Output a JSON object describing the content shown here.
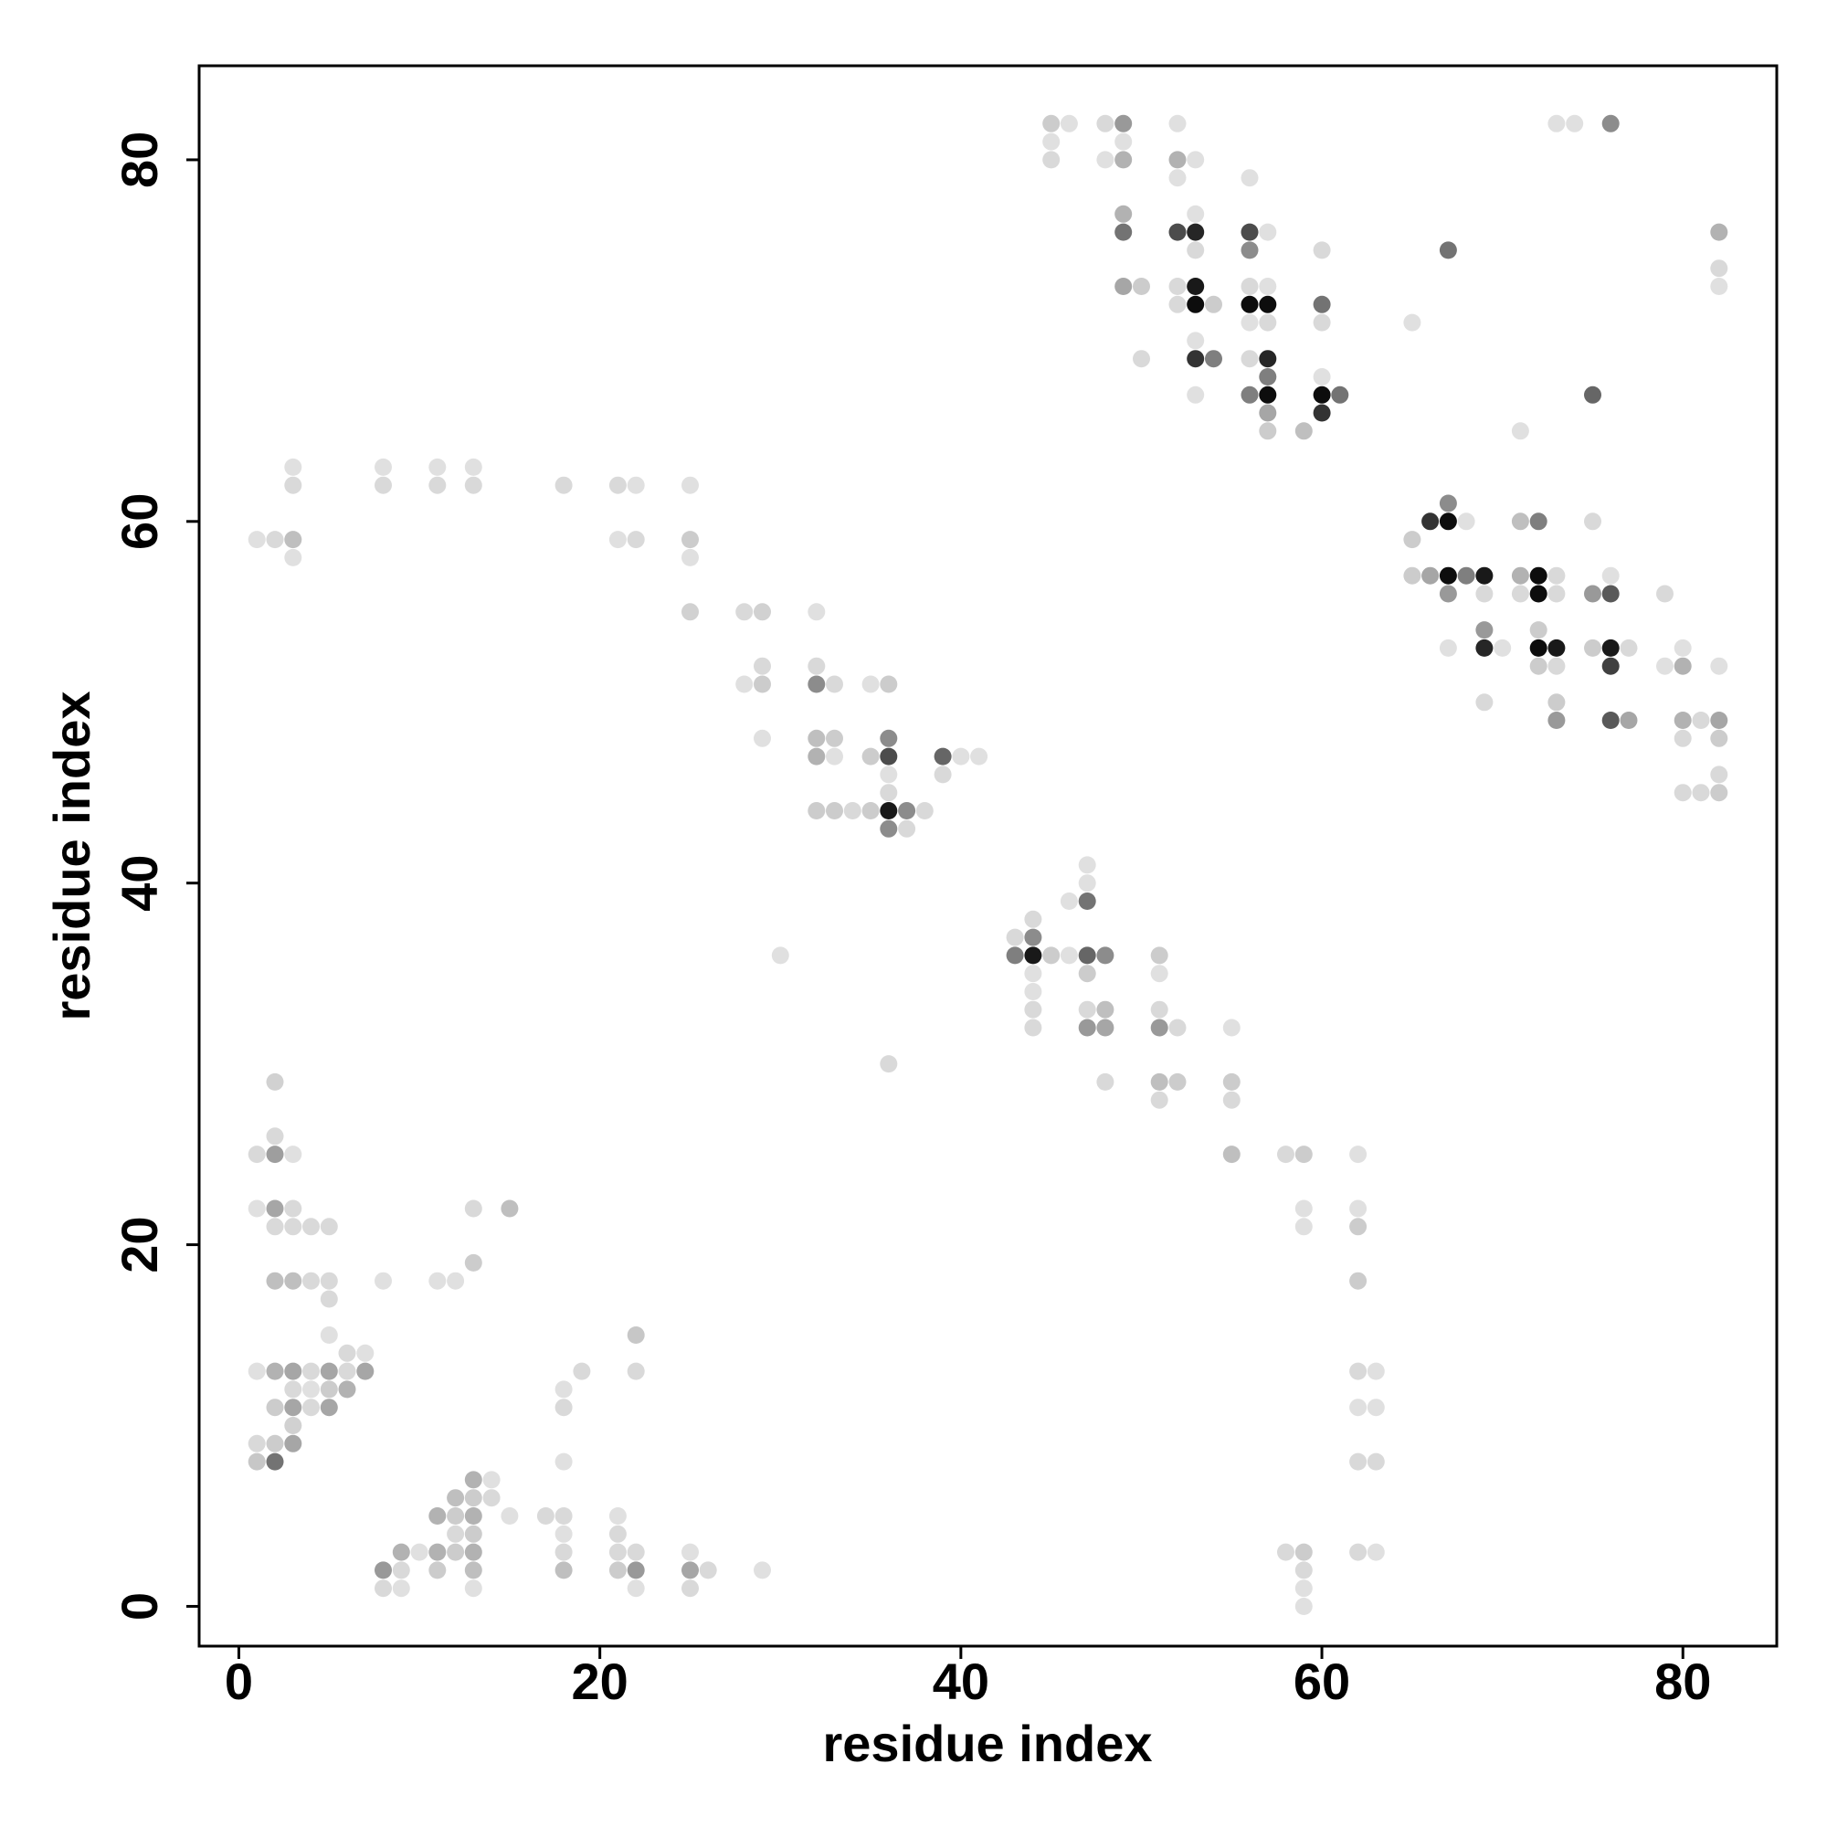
{
  "chart_data": {
    "type": "scatter",
    "title": "",
    "xlabel": "residue index",
    "ylabel": "residue index",
    "xlim": [
      -2.2,
      85.2
    ],
    "ylim": [
      -2.2,
      85.2
    ],
    "xticks": [
      0,
      20,
      40,
      60,
      80
    ],
    "yticks": [
      0,
      20,
      40,
      60,
      80
    ],
    "grid": false,
    "legend": "none",
    "marker_color": "#000000",
    "note_value": "point darkness (opacity 0-1) encodes contact strength",
    "points": [
      [
        1,
        13,
        0.12
      ],
      [
        1,
        22,
        0.12
      ],
      [
        1,
        25,
        0.15
      ],
      [
        1,
        59,
        0.12
      ],
      [
        1,
        9,
        0.15
      ],
      [
        1,
        8,
        0.22
      ],
      [
        2,
        8,
        0.55
      ],
      [
        2,
        9,
        0.2
      ],
      [
        2,
        11,
        0.2
      ],
      [
        2,
        13,
        0.3
      ],
      [
        2,
        18,
        0.25
      ],
      [
        2,
        21,
        0.15
      ],
      [
        2,
        22,
        0.35
      ],
      [
        2,
        25,
        0.38
      ],
      [
        2,
        26,
        0.15
      ],
      [
        2,
        29,
        0.18
      ],
      [
        2,
        59,
        0.15
      ],
      [
        3,
        9,
        0.35
      ],
      [
        3,
        10,
        0.18
      ],
      [
        3,
        11,
        0.35
      ],
      [
        3,
        12,
        0.15
      ],
      [
        3,
        13,
        0.35
      ],
      [
        3,
        18,
        0.25
      ],
      [
        3,
        21,
        0.15
      ],
      [
        3,
        22,
        0.15
      ],
      [
        3,
        25,
        0.12
      ],
      [
        3,
        58,
        0.12
      ],
      [
        3,
        59,
        0.25
      ],
      [
        3,
        62,
        0.15
      ],
      [
        3,
        63,
        0.12
      ],
      [
        4,
        11,
        0.15
      ],
      [
        4,
        12,
        0.12
      ],
      [
        4,
        13,
        0.15
      ],
      [
        4,
        18,
        0.15
      ],
      [
        4,
        21,
        0.15
      ],
      [
        5,
        11,
        0.35
      ],
      [
        5,
        12,
        0.2
      ],
      [
        5,
        13,
        0.35
      ],
      [
        5,
        15,
        0.12
      ],
      [
        5,
        17,
        0.15
      ],
      [
        5,
        18,
        0.15
      ],
      [
        5,
        21,
        0.15
      ],
      [
        6,
        12,
        0.3
      ],
      [
        6,
        13,
        0.15
      ],
      [
        6,
        14,
        0.15
      ],
      [
        7,
        13,
        0.35
      ],
      [
        7,
        14,
        0.12
      ],
      [
        8,
        1,
        0.15
      ],
      [
        8,
        2,
        0.4
      ],
      [
        8,
        18,
        0.12
      ],
      [
        8,
        62,
        0.15
      ],
      [
        8,
        63,
        0.12
      ],
      [
        9,
        1,
        0.12
      ],
      [
        9,
        2,
        0.15
      ],
      [
        9,
        3,
        0.3
      ],
      [
        10,
        3,
        0.12
      ],
      [
        11,
        2,
        0.2
      ],
      [
        11,
        3,
        0.3
      ],
      [
        11,
        5,
        0.3
      ],
      [
        11,
        18,
        0.12
      ],
      [
        11,
        62,
        0.15
      ],
      [
        11,
        63,
        0.12
      ],
      [
        12,
        3,
        0.2
      ],
      [
        12,
        4,
        0.15
      ],
      [
        12,
        5,
        0.2
      ],
      [
        12,
        6,
        0.25
      ],
      [
        12,
        18,
        0.12
      ],
      [
        13,
        1,
        0.12
      ],
      [
        13,
        2,
        0.25
      ],
      [
        13,
        3,
        0.3
      ],
      [
        13,
        4,
        0.2
      ],
      [
        13,
        5,
        0.3
      ],
      [
        13,
        6,
        0.2
      ],
      [
        13,
        7,
        0.3
      ],
      [
        13,
        19,
        0.2
      ],
      [
        13,
        22,
        0.15
      ],
      [
        13,
        62,
        0.15
      ],
      [
        13,
        63,
        0.12
      ],
      [
        14,
        6,
        0.15
      ],
      [
        14,
        7,
        0.12
      ],
      [
        15,
        5,
        0.12
      ],
      [
        15,
        22,
        0.25
      ],
      [
        17,
        5,
        0.15
      ],
      [
        18,
        2,
        0.25
      ],
      [
        18,
        3,
        0.15
      ],
      [
        18,
        4,
        0.12
      ],
      [
        18,
        5,
        0.15
      ],
      [
        18,
        8,
        0.12
      ],
      [
        18,
        11,
        0.15
      ],
      [
        18,
        12,
        0.12
      ],
      [
        18,
        62,
        0.15
      ],
      [
        19,
        13,
        0.15
      ],
      [
        21,
        2,
        0.2
      ],
      [
        21,
        3,
        0.15
      ],
      [
        21,
        4,
        0.15
      ],
      [
        21,
        5,
        0.12
      ],
      [
        21,
        59,
        0.12
      ],
      [
        21,
        62,
        0.15
      ],
      [
        22,
        1,
        0.12
      ],
      [
        22,
        2,
        0.4
      ],
      [
        22,
        3,
        0.15
      ],
      [
        22,
        13,
        0.15
      ],
      [
        22,
        15,
        0.22
      ],
      [
        22,
        59,
        0.15
      ],
      [
        22,
        62,
        0.12
      ],
      [
        25,
        1,
        0.15
      ],
      [
        25,
        2,
        0.35
      ],
      [
        25,
        3,
        0.12
      ],
      [
        25,
        55,
        0.18
      ],
      [
        25,
        58,
        0.12
      ],
      [
        25,
        59,
        0.2
      ],
      [
        25,
        62,
        0.12
      ],
      [
        26,
        2,
        0.15
      ],
      [
        28,
        51,
        0.12
      ],
      [
        28,
        55,
        0.15
      ],
      [
        29,
        2,
        0.12
      ],
      [
        29,
        48,
        0.12
      ],
      [
        29,
        51,
        0.2
      ],
      [
        29,
        52,
        0.15
      ],
      [
        29,
        55,
        0.18
      ],
      [
        30,
        36,
        0.12
      ],
      [
        32,
        44,
        0.2
      ],
      [
        32,
        47,
        0.3
      ],
      [
        32,
        48,
        0.25
      ],
      [
        32,
        51,
        0.45
      ],
      [
        32,
        52,
        0.15
      ],
      [
        32,
        55,
        0.12
      ],
      [
        33,
        44,
        0.2
      ],
      [
        33,
        47,
        0.12
      ],
      [
        33,
        48,
        0.2
      ],
      [
        33,
        51,
        0.15
      ],
      [
        34,
        44,
        0.15
      ],
      [
        35,
        44,
        0.2
      ],
      [
        35,
        47,
        0.2
      ],
      [
        35,
        51,
        0.12
      ],
      [
        36,
        30,
        0.15
      ],
      [
        36,
        43,
        0.45
      ],
      [
        36,
        44,
        0.9
      ],
      [
        36,
        45,
        0.15
      ],
      [
        36,
        46,
        0.12
      ],
      [
        36,
        47,
        0.7
      ],
      [
        36,
        48,
        0.45
      ],
      [
        36,
        51,
        0.2
      ],
      [
        37,
        43,
        0.15
      ],
      [
        37,
        44,
        0.45
      ],
      [
        38,
        44,
        0.15
      ],
      [
        39,
        46,
        0.15
      ],
      [
        39,
        47,
        0.6
      ],
      [
        40,
        47,
        0.12
      ],
      [
        41,
        47,
        0.12
      ],
      [
        43,
        36,
        0.5
      ],
      [
        43,
        37,
        0.15
      ],
      [
        44,
        32,
        0.15
      ],
      [
        44,
        33,
        0.15
      ],
      [
        44,
        34,
        0.12
      ],
      [
        44,
        35,
        0.12
      ],
      [
        44,
        36,
        0.9
      ],
      [
        44,
        37,
        0.45
      ],
      [
        44,
        38,
        0.15
      ],
      [
        45,
        36,
        0.2
      ],
      [
        45,
        81,
        0.12
      ],
      [
        45,
        82,
        0.2
      ],
      [
        45,
        80,
        0.15
      ],
      [
        46,
        36,
        0.12
      ],
      [
        46,
        39,
        0.12
      ],
      [
        46,
        82,
        0.12
      ],
      [
        47,
        32,
        0.4
      ],
      [
        47,
        33,
        0.15
      ],
      [
        47,
        35,
        0.2
      ],
      [
        47,
        36,
        0.6
      ],
      [
        47,
        39,
        0.55
      ],
      [
        47,
        40,
        0.12
      ],
      [
        47,
        41,
        0.12
      ],
      [
        48,
        29,
        0.15
      ],
      [
        48,
        32,
        0.35
      ],
      [
        48,
        33,
        0.25
      ],
      [
        48,
        36,
        0.45
      ],
      [
        48,
        80,
        0.12
      ],
      [
        48,
        82,
        0.15
      ],
      [
        49,
        73,
        0.35
      ],
      [
        49,
        76,
        0.55
      ],
      [
        49,
        77,
        0.3
      ],
      [
        49,
        80,
        0.3
      ],
      [
        49,
        81,
        0.12
      ],
      [
        49,
        82,
        0.4
      ],
      [
        50,
        69,
        0.15
      ],
      [
        50,
        73,
        0.2
      ],
      [
        51,
        28,
        0.15
      ],
      [
        51,
        29,
        0.25
      ],
      [
        51,
        32,
        0.4
      ],
      [
        51,
        33,
        0.15
      ],
      [
        51,
        35,
        0.12
      ],
      [
        51,
        36,
        0.2
      ],
      [
        52,
        29,
        0.2
      ],
      [
        52,
        32,
        0.15
      ],
      [
        52,
        72,
        0.15
      ],
      [
        52,
        73,
        0.15
      ],
      [
        52,
        76,
        0.7
      ],
      [
        52,
        79,
        0.12
      ],
      [
        52,
        80,
        0.3
      ],
      [
        52,
        82,
        0.12
      ],
      [
        53,
        67,
        0.12
      ],
      [
        53,
        69,
        0.8
      ],
      [
        53,
        70,
        0.12
      ],
      [
        53,
        72,
        0.95
      ],
      [
        53,
        73,
        0.9
      ],
      [
        53,
        75,
        0.15
      ],
      [
        53,
        76,
        0.85
      ],
      [
        53,
        77,
        0.12
      ],
      [
        53,
        80,
        0.12
      ],
      [
        54,
        69,
        0.5
      ],
      [
        54,
        72,
        0.2
      ],
      [
        55,
        25,
        0.25
      ],
      [
        55,
        28,
        0.15
      ],
      [
        55,
        29,
        0.2
      ],
      [
        55,
        32,
        0.12
      ],
      [
        56,
        67,
        0.5
      ],
      [
        56,
        69,
        0.15
      ],
      [
        56,
        71,
        0.12
      ],
      [
        56,
        72,
        0.95
      ],
      [
        56,
        73,
        0.15
      ],
      [
        56,
        75,
        0.45
      ],
      [
        56,
        76,
        0.7
      ],
      [
        56,
        79,
        0.12
      ],
      [
        57,
        65,
        0.2
      ],
      [
        57,
        66,
        0.35
      ],
      [
        57,
        67,
        0.95
      ],
      [
        57,
        68,
        0.5
      ],
      [
        57,
        69,
        0.85
      ],
      [
        57,
        71,
        0.15
      ],
      [
        57,
        72,
        0.95
      ],
      [
        57,
        73,
        0.12
      ],
      [
        57,
        76,
        0.12
      ],
      [
        58,
        3,
        0.15
      ],
      [
        58,
        25,
        0.15
      ],
      [
        59,
        0,
        0.12
      ],
      [
        59,
        1,
        0.12
      ],
      [
        59,
        2,
        0.15
      ],
      [
        59,
        3,
        0.2
      ],
      [
        59,
        21,
        0.12
      ],
      [
        59,
        22,
        0.12
      ],
      [
        59,
        25,
        0.2
      ],
      [
        59,
        65,
        0.25
      ],
      [
        60,
        66,
        0.8
      ],
      [
        60,
        67,
        0.95
      ],
      [
        60,
        68,
        0.12
      ],
      [
        60,
        71,
        0.15
      ],
      [
        60,
        72,
        0.55
      ],
      [
        60,
        75,
        0.15
      ],
      [
        61,
        67,
        0.55
      ],
      [
        62,
        3,
        0.15
      ],
      [
        62,
        8,
        0.15
      ],
      [
        62,
        11,
        0.12
      ],
      [
        62,
        13,
        0.15
      ],
      [
        62,
        18,
        0.2
      ],
      [
        62,
        21,
        0.2
      ],
      [
        62,
        22,
        0.12
      ],
      [
        62,
        25,
        0.12
      ],
      [
        63,
        3,
        0.12
      ],
      [
        63,
        8,
        0.15
      ],
      [
        63,
        11,
        0.12
      ],
      [
        63,
        13,
        0.12
      ],
      [
        65,
        57,
        0.2
      ],
      [
        65,
        59,
        0.2
      ],
      [
        65,
        71,
        0.12
      ],
      [
        66,
        57,
        0.35
      ],
      [
        66,
        60,
        0.8
      ],
      [
        67,
        53,
        0.12
      ],
      [
        67,
        56,
        0.4
      ],
      [
        67,
        57,
        0.95
      ],
      [
        67,
        60,
        0.95
      ],
      [
        67,
        61,
        0.45
      ],
      [
        67,
        75,
        0.55
      ],
      [
        68,
        57,
        0.5
      ],
      [
        68,
        60,
        0.12
      ],
      [
        69,
        50,
        0.15
      ],
      [
        69,
        53,
        0.85
      ],
      [
        69,
        54,
        0.4
      ],
      [
        69,
        56,
        0.15
      ],
      [
        69,
        57,
        0.9
      ],
      [
        70,
        53,
        0.12
      ],
      [
        71,
        56,
        0.15
      ],
      [
        71,
        57,
        0.3
      ],
      [
        71,
        60,
        0.25
      ],
      [
        71,
        65,
        0.12
      ],
      [
        72,
        52,
        0.2
      ],
      [
        72,
        53,
        0.95
      ],
      [
        72,
        54,
        0.2
      ],
      [
        72,
        56,
        0.95
      ],
      [
        72,
        57,
        0.95
      ],
      [
        72,
        60,
        0.5
      ],
      [
        73,
        49,
        0.4
      ],
      [
        73,
        50,
        0.2
      ],
      [
        73,
        52,
        0.15
      ],
      [
        73,
        53,
        0.9
      ],
      [
        73,
        56,
        0.15
      ],
      [
        73,
        57,
        0.15
      ],
      [
        73,
        82,
        0.12
      ],
      [
        74,
        82,
        0.12
      ],
      [
        75,
        53,
        0.2
      ],
      [
        75,
        56,
        0.4
      ],
      [
        75,
        60,
        0.15
      ],
      [
        75,
        67,
        0.6
      ],
      [
        76,
        49,
        0.65
      ],
      [
        76,
        52,
        0.75
      ],
      [
        76,
        53,
        0.9
      ],
      [
        76,
        56,
        0.65
      ],
      [
        76,
        57,
        0.12
      ],
      [
        76,
        82,
        0.45
      ],
      [
        77,
        49,
        0.35
      ],
      [
        77,
        53,
        0.15
      ],
      [
        79,
        52,
        0.12
      ],
      [
        79,
        56,
        0.15
      ],
      [
        80,
        45,
        0.15
      ],
      [
        80,
        48,
        0.15
      ],
      [
        80,
        49,
        0.3
      ],
      [
        80,
        52,
        0.3
      ],
      [
        80,
        53,
        0.12
      ],
      [
        81,
        45,
        0.15
      ],
      [
        81,
        49,
        0.15
      ],
      [
        82,
        45,
        0.2
      ],
      [
        82,
        46,
        0.15
      ],
      [
        82,
        48,
        0.2
      ],
      [
        82,
        49,
        0.35
      ],
      [
        82,
        52,
        0.12
      ],
      [
        82,
        73,
        0.12
      ],
      [
        82,
        74,
        0.15
      ],
      [
        82,
        76,
        0.3
      ]
    ]
  }
}
